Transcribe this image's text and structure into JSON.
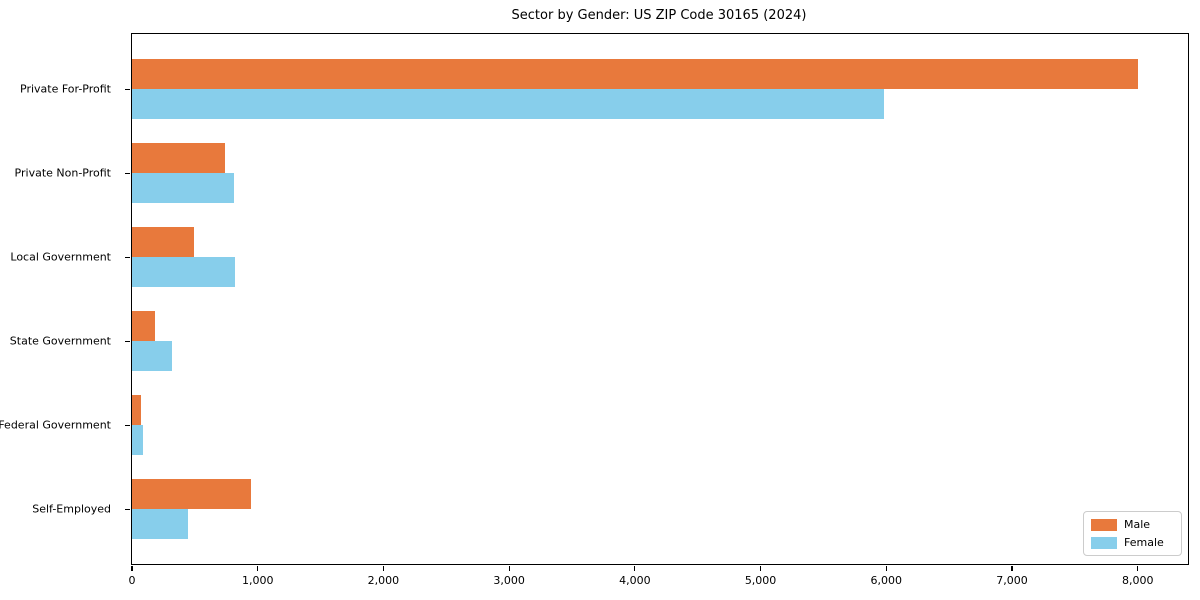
{
  "title": "Sector by Gender: US ZIP Code 30165 (2024)",
  "legend": {
    "items": [
      {
        "label": "Male",
        "color": "#e8793c"
      },
      {
        "label": "Female",
        "color": "#87ceeb"
      }
    ]
  },
  "chart_data": {
    "type": "bar",
    "orientation": "horizontal",
    "title": "Sector by Gender: US ZIP Code 30165 (2024)",
    "categories": [
      "Private For-Profit",
      "Private Non-Profit",
      "Local Government",
      "State Government",
      "Federal Government",
      "Self-Employed"
    ],
    "series": [
      {
        "name": "Male",
        "color": "#e8793c",
        "values": [
          8000,
          740,
          490,
          180,
          75,
          950
        ]
      },
      {
        "name": "Female",
        "color": "#87ceeb",
        "values": [
          5980,
          810,
          820,
          315,
          90,
          445
        ]
      }
    ],
    "xlabel": "",
    "ylabel": "",
    "xlim": [
      0,
      8400
    ],
    "xticks": [
      0,
      1000,
      2000,
      3000,
      4000,
      5000,
      6000,
      7000,
      8000
    ],
    "xtick_labels": [
      "0",
      "1,000",
      "2,000",
      "3,000",
      "4,000",
      "5,000",
      "6,000",
      "7,000",
      "8,000"
    ],
    "grid": false,
    "legend_position": "lower right"
  }
}
